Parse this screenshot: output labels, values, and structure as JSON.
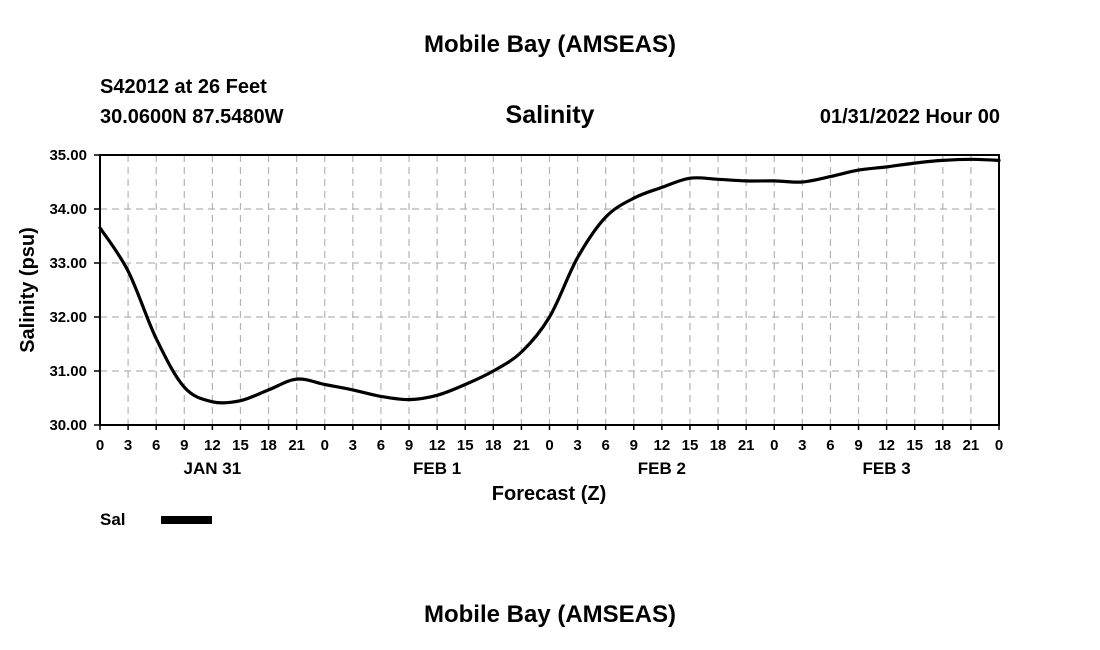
{
  "header": {
    "title": "Mobile Bay (AMSEAS)",
    "station": "S42012 at 26 Feet",
    "coords": "30.0600N  87.5480W",
    "timestamp": "01/31/2022 Hour 00"
  },
  "footer": {
    "title": "Mobile Bay (AMSEAS)"
  },
  "chart_data": {
    "type": "line",
    "title": "Salinity",
    "xlabel": "Forecast (Z)",
    "ylabel": "Salinity (psu)",
    "ylim": [
      30.0,
      35.0
    ],
    "yticks": [
      "30.00",
      "31.00",
      "32.00",
      "33.00",
      "34.00",
      "35.00"
    ],
    "xlim": [
      0,
      96
    ],
    "xticks": [
      "0",
      "3",
      "6",
      "9",
      "12",
      "15",
      "18",
      "21",
      "0",
      "3",
      "6",
      "9",
      "12",
      "15",
      "18",
      "21",
      "0",
      "3",
      "6",
      "9",
      "12",
      "15",
      "18",
      "21",
      "0",
      "3",
      "6",
      "9",
      "12",
      "15",
      "18",
      "21",
      "0"
    ],
    "days": [
      {
        "label": "JAN 31",
        "hour": 12
      },
      {
        "label": "FEB 1",
        "hour": 36
      },
      {
        "label": "FEB 2",
        "hour": 60
      },
      {
        "label": "FEB 3",
        "hour": 84
      }
    ],
    "grid": true,
    "legend": {
      "position": "bottom-left",
      "entries": [
        {
          "name": "Sal",
          "color": "#000000"
        }
      ]
    },
    "series": [
      {
        "name": "Sal",
        "color": "#000000",
        "x": [
          0,
          3,
          6,
          9,
          12,
          15,
          18,
          21,
          24,
          27,
          30,
          33,
          36,
          39,
          42,
          45,
          48,
          51,
          54,
          57,
          60,
          63,
          66,
          69,
          72,
          75,
          78,
          81,
          84,
          87,
          90,
          93,
          96
        ],
        "values": [
          33.65,
          32.85,
          31.6,
          30.7,
          30.43,
          30.45,
          30.65,
          30.85,
          30.75,
          30.65,
          30.53,
          30.47,
          30.55,
          30.75,
          31.0,
          31.35,
          32.0,
          33.1,
          33.85,
          34.2,
          34.4,
          34.57,
          34.55,
          34.52,
          34.52,
          34.5,
          34.6,
          34.72,
          34.78,
          34.85,
          34.9,
          34.92,
          34.9
        ]
      }
    ]
  }
}
